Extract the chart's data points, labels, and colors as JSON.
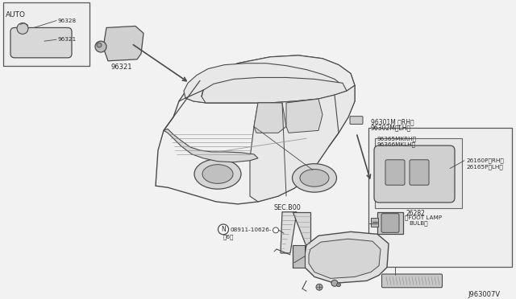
{
  "bg_color": "#f2f2f2",
  "line_color": "#4a4a4a",
  "text_color": "#2a2a2a",
  "labels": {
    "auto": "AUTO",
    "96328": "96328",
    "96321_inset": "96321",
    "96321_main": "96321",
    "96301M": "96301M 〈RH〉",
    "96302M": "96302M〈LH〉",
    "96365M": "96365MKRH〉",
    "96366M": "96366MKLH〉",
    "26160P": "26160P〈RH〉",
    "26165P": "26165P〈LH〉",
    "26282": "26282",
    "foot_lamp": "〈FOOT LAMP",
    "bulb": "BULB〉",
    "sec_b00": "SEC.B00",
    "bolt": "ⓝ08911-10626-®",
    "bolt_sub": "〈6〉",
    "diagram_id": "J963007V"
  },
  "font_size": 5.8
}
